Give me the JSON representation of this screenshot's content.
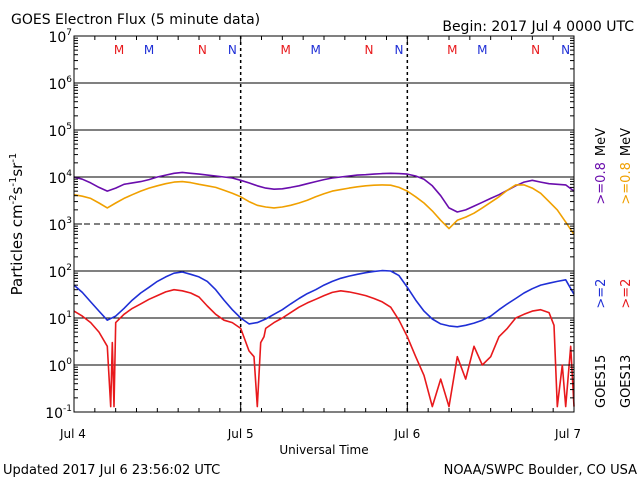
{
  "chart_data": {
    "type": "line",
    "title": "GOES Electron Flux (5 minute data)",
    "begin_label": "Begin: 2017 Jul 4 0000 UTC",
    "xlabel": "Universal Time",
    "ylabel_main": "Particles cm",
    "ylabel_exp1": "-2",
    "ylabel_mid1": "s",
    "ylabel_exp2": "-1",
    "ylabel_mid2": "sr",
    "ylabel_exp3": "-1",
    "y_scale": "log",
    "ylim": [
      0.1,
      10000000
    ],
    "xlim_days": [
      0,
      3
    ],
    "x_ticks": [
      {
        "day": 0,
        "label": "Jul 4"
      },
      {
        "day": 1,
        "label": "Jul 5"
      },
      {
        "day": 2,
        "label": "Jul 6"
      },
      {
        "day": 3,
        "label": "Jul 7"
      }
    ],
    "y_ticks": [
      {
        "exp": 7,
        "base": "10",
        "sup": "7"
      },
      {
        "exp": 6,
        "base": "10",
        "sup": "6"
      },
      {
        "exp": 5,
        "base": "10",
        "sup": "5"
      },
      {
        "exp": 4,
        "base": "10",
        "sup": "4"
      },
      {
        "exp": 3,
        "base": "10",
        "sup": "3"
      },
      {
        "exp": 2,
        "base": "10",
        "sup": "2"
      },
      {
        "exp": 1,
        "base": "10",
        "sup": "1"
      },
      {
        "exp": 0,
        "base": "10",
        "sup": "0"
      },
      {
        "exp": -1,
        "base": "10",
        "sup": "-1"
      }
    ],
    "threshold_dashed": 1000,
    "markers": [
      {
        "day": 0.27,
        "label": "M",
        "color": "#e8191c"
      },
      {
        "day": 0.45,
        "label": "M",
        "color": "#1f2fd6"
      },
      {
        "day": 0.77,
        "label": "N",
        "color": "#e8191c"
      },
      {
        "day": 0.95,
        "label": "N",
        "color": "#1f2fd6"
      },
      {
        "day": 1.27,
        "label": "M",
        "color": "#e8191c"
      },
      {
        "day": 1.45,
        "label": "M",
        "color": "#1f2fd6"
      },
      {
        "day": 1.77,
        "label": "N",
        "color": "#e8191c"
      },
      {
        "day": 1.95,
        "label": "N",
        "color": "#1f2fd6"
      },
      {
        "day": 2.27,
        "label": "M",
        "color": "#e8191c"
      },
      {
        "day": 2.45,
        "label": "M",
        "color": "#1f2fd6"
      },
      {
        "day": 2.77,
        "label": "N",
        "color": "#e8191c"
      },
      {
        "day": 2.95,
        "label": "N",
        "color": "#1f2fd6"
      }
    ],
    "legend": {
      "col1_title": "GOES15",
      "col1_a": ">=2",
      "col1_b": ">=0.8",
      "col1_a_color": "#1f2fd6",
      "col1_b_color": "#6a0dad",
      "col2_title": "GOES13",
      "col2_a": ">=2",
      "col2_b": ">=0.8",
      "col2_a_color": "#e8191c",
      "col2_b_color": "#f0a000",
      "unit": "MeV"
    },
    "series": [
      {
        "name": "GOES15 >=0.8 MeV",
        "color": "#6a0dad",
        "x": [
          0,
          0.05,
          0.1,
          0.15,
          0.2,
          0.25,
          0.3,
          0.35,
          0.4,
          0.45,
          0.5,
          0.55,
          0.6,
          0.65,
          0.7,
          0.75,
          0.8,
          0.85,
          0.9,
          0.95,
          1.0,
          1.05,
          1.1,
          1.15,
          1.2,
          1.25,
          1.3,
          1.35,
          1.4,
          1.45,
          1.5,
          1.55,
          1.6,
          1.65,
          1.7,
          1.75,
          1.8,
          1.85,
          1.9,
          1.95,
          2.0,
          2.05,
          2.1,
          2.15,
          2.2,
          2.25,
          2.3,
          2.35,
          2.4,
          2.45,
          2.5,
          2.55,
          2.6,
          2.65,
          2.7,
          2.75,
          2.8,
          2.85,
          2.9,
          2.95,
          3.0
        ],
        "y": [
          10000,
          9000,
          7500,
          6000,
          5000,
          5800,
          7000,
          7500,
          8000,
          8800,
          10000,
          11000,
          12000,
          12500,
          12000,
          11500,
          11000,
          10500,
          10000,
          9500,
          8500,
          7500,
          6500,
          5800,
          5500,
          5600,
          6000,
          6500,
          7200,
          8000,
          8800,
          9500,
          10000,
          10500,
          11000,
          11200,
          11500,
          11800,
          12000,
          11800,
          11500,
          10500,
          9000,
          6500,
          4000,
          2200,
          1800,
          2000,
          2400,
          2900,
          3500,
          4200,
          5200,
          6500,
          7800,
          8500,
          7800,
          7200,
          7000,
          6800,
          5000
        ]
      },
      {
        "name": "GOES13 >=0.8 MeV",
        "color": "#f0a000",
        "x": [
          0,
          0.05,
          0.1,
          0.15,
          0.2,
          0.25,
          0.3,
          0.35,
          0.4,
          0.45,
          0.5,
          0.55,
          0.6,
          0.65,
          0.7,
          0.75,
          0.8,
          0.85,
          0.9,
          0.95,
          1.0,
          1.05,
          1.1,
          1.15,
          1.2,
          1.25,
          1.3,
          1.35,
          1.4,
          1.45,
          1.5,
          1.55,
          1.6,
          1.65,
          1.7,
          1.75,
          1.8,
          1.85,
          1.9,
          1.95,
          2.0,
          2.05,
          2.1,
          2.15,
          2.2,
          2.25,
          2.3,
          2.35,
          2.4,
          2.45,
          2.5,
          2.55,
          2.6,
          2.65,
          2.7,
          2.75,
          2.8,
          2.85,
          2.9,
          2.95,
          3.0
        ],
        "y": [
          4200,
          3900,
          3500,
          2800,
          2200,
          2800,
          3500,
          4200,
          5000,
          5800,
          6500,
          7200,
          7800,
          8000,
          7600,
          7000,
          6500,
          6000,
          5200,
          4500,
          3800,
          3000,
          2500,
          2300,
          2200,
          2300,
          2500,
          2800,
          3200,
          3800,
          4400,
          5000,
          5400,
          5800,
          6200,
          6500,
          6700,
          6800,
          6700,
          6000,
          5000,
          3800,
          2800,
          1900,
          1200,
          800,
          1200,
          1400,
          1700,
          2200,
          2900,
          3800,
          5200,
          6800,
          6800,
          5800,
          4500,
          3000,
          2000,
          1100,
          600
        ]
      },
      {
        "name": "GOES15 >=2 MeV",
        "color": "#1f2fd6",
        "x": [
          0,
          0.05,
          0.1,
          0.15,
          0.2,
          0.25,
          0.3,
          0.35,
          0.4,
          0.45,
          0.5,
          0.55,
          0.6,
          0.65,
          0.7,
          0.75,
          0.8,
          0.85,
          0.9,
          0.95,
          1.0,
          1.05,
          1.1,
          1.15,
          1.2,
          1.25,
          1.3,
          1.35,
          1.4,
          1.45,
          1.5,
          1.55,
          1.6,
          1.65,
          1.7,
          1.75,
          1.8,
          1.85,
          1.9,
          1.95,
          2.0,
          2.05,
          2.1,
          2.15,
          2.2,
          2.25,
          2.3,
          2.35,
          2.4,
          2.45,
          2.5,
          2.55,
          2.6,
          2.65,
          2.7,
          2.75,
          2.8,
          2.85,
          2.9,
          2.95,
          3.0
        ],
        "y": [
          50,
          35,
          22,
          14,
          9,
          11,
          16,
          24,
          34,
          45,
          60,
          75,
          90,
          95,
          85,
          75,
          60,
          40,
          24,
          15,
          10,
          7.5,
          8,
          9.5,
          12,
          15,
          20,
          26,
          33,
          40,
          50,
          60,
          70,
          78,
          85,
          92,
          98,
          102,
          100,
          80,
          45,
          24,
          14,
          9.5,
          7.5,
          6.8,
          6.5,
          7,
          7.8,
          9,
          11,
          15,
          20,
          26,
          34,
          42,
          50,
          55,
          60,
          65,
          32
        ]
      },
      {
        "name": "GOES13 >=2 MeV",
        "color": "#e8191c",
        "x": [
          0,
          0.05,
          0.1,
          0.15,
          0.2,
          0.22,
          0.23,
          0.24,
          0.25,
          0.3,
          0.35,
          0.4,
          0.45,
          0.5,
          0.55,
          0.6,
          0.65,
          0.7,
          0.75,
          0.8,
          0.85,
          0.9,
          0.95,
          1.0,
          1.05,
          1.08,
          1.1,
          1.12,
          1.14,
          1.15,
          1.2,
          1.25,
          1.3,
          1.35,
          1.4,
          1.45,
          1.5,
          1.55,
          1.6,
          1.65,
          1.7,
          1.75,
          1.8,
          1.85,
          1.9,
          1.95,
          2.0,
          2.05,
          2.1,
          2.15,
          2.2,
          2.25,
          2.3,
          2.35,
          2.4,
          2.45,
          2.5,
          2.55,
          2.6,
          2.65,
          2.7,
          2.75,
          2.8,
          2.85,
          2.88,
          2.9,
          2.93,
          2.95,
          2.98,
          3.0
        ],
        "y": [
          14,
          11,
          8,
          5,
          2.5,
          0.13,
          3,
          0.13,
          8,
          12,
          16,
          20,
          25,
          30,
          36,
          40,
          38,
          34,
          28,
          18,
          12,
          9,
          8,
          6,
          2,
          1.5,
          0.13,
          3,
          4,
          6,
          8,
          10,
          13,
          17,
          21,
          25,
          30,
          35,
          38,
          36,
          33,
          30,
          26,
          22,
          17,
          9,
          4,
          1.5,
          0.6,
          0.13,
          0.5,
          0.13,
          1.5,
          0.5,
          2.5,
          1.0,
          1.5,
          4,
          6,
          10,
          12,
          14,
          15,
          13,
          7,
          0.13,
          1.0,
          0.13,
          2.5,
          0.13
        ]
      }
    ]
  },
  "footer": {
    "updated": "Updated 2017 Jul  6 23:56:02 UTC",
    "credit": "NOAA/SWPC Boulder, CO USA"
  }
}
